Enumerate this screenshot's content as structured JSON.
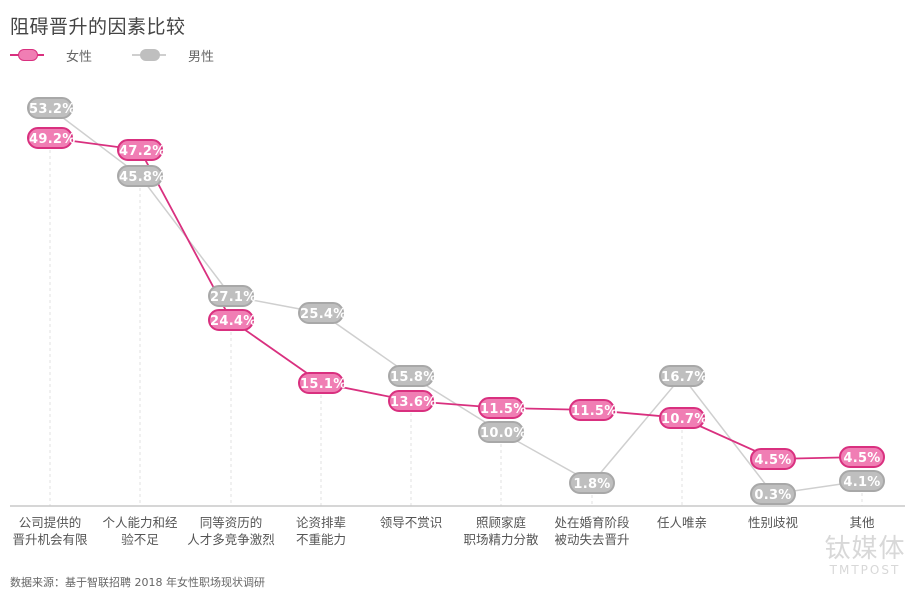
{
  "title": "阻碍晋升的因素比较",
  "legend": [
    {
      "name": "女性",
      "color": "#f07eb4",
      "border": "#d9307f",
      "line": "#d9307f"
    },
    {
      "name": "男性",
      "color": "#bfbfbf",
      "border": "#a8a8a8",
      "line": "#cfcfcf"
    }
  ],
  "source": "数据来源：基于智联招聘 2018 年女性职场现状调研",
  "watermark": {
    "cn": "钛媒体",
    "en": "TMTPOST"
  },
  "chart_data": {
    "type": "line",
    "title": "阻碍晋升的因素比较",
    "xlabel": "",
    "ylabel": "",
    "categories": [
      "公司提供的晋升机会有限",
      "个人能力和经验不足",
      "同等资历的人才多竞争激烈",
      "论资排辈不重能力",
      "领导不赏识",
      "照顾家庭职场精力分散",
      "处在婚育阶段被动失去晋升",
      "任人唯亲",
      "性别歧视",
      "其他"
    ],
    "category_lines": [
      [
        "公司提供的",
        "晋升机会有限"
      ],
      [
        "个人能力和经",
        "验不足"
      ],
      [
        "同等资历的",
        "人才多竞争激烈"
      ],
      [
        "论资排辈",
        "不重能力"
      ],
      [
        "领导不赏识",
        ""
      ],
      [
        "照顾家庭",
        "职场精力分散"
      ],
      [
        "处在婚育阶段",
        "被动失去晋升"
      ],
      [
        "任人唯亲",
        ""
      ],
      [
        "性别歧视",
        ""
      ],
      [
        "其他",
        ""
      ]
    ],
    "series": [
      {
        "name": "女性",
        "values": [
          49.2,
          47.2,
          24.4,
          15.1,
          13.6,
          11.5,
          11.5,
          10.7,
          4.5,
          4.5
        ],
        "labels": [
          "49.2%",
          "47.2%",
          "24.4%",
          "15.1%",
          "13.6%",
          "11.5%",
          "11.5%",
          "10.7%",
          "4.5%",
          "4.5%"
        ]
      },
      {
        "name": "男性",
        "values": [
          53.2,
          45.8,
          27.1,
          25.4,
          15.8,
          10.0,
          1.8,
          16.7,
          0.3,
          4.1
        ],
        "labels": [
          "53.2%",
          "45.8%",
          "27.1%",
          "25.4%",
          "15.8%",
          "10.0%",
          "1.8%",
          "16.7%",
          "0.3%",
          "4.1%"
        ]
      }
    ],
    "unit": "%",
    "legend_position": "top-left",
    "grid": "vertical dotted guides per category"
  },
  "layout": {
    "x": [
      50,
      140,
      231,
      321,
      411,
      501,
      592,
      682,
      773,
      862
    ],
    "female_y": [
      138,
      150,
      320,
      383,
      401,
      408,
      410,
      418,
      459,
      457
    ],
    "male_y": [
      108,
      176,
      296,
      313,
      376,
      432,
      483,
      376,
      494,
      481
    ],
    "axis_y": 506
  }
}
